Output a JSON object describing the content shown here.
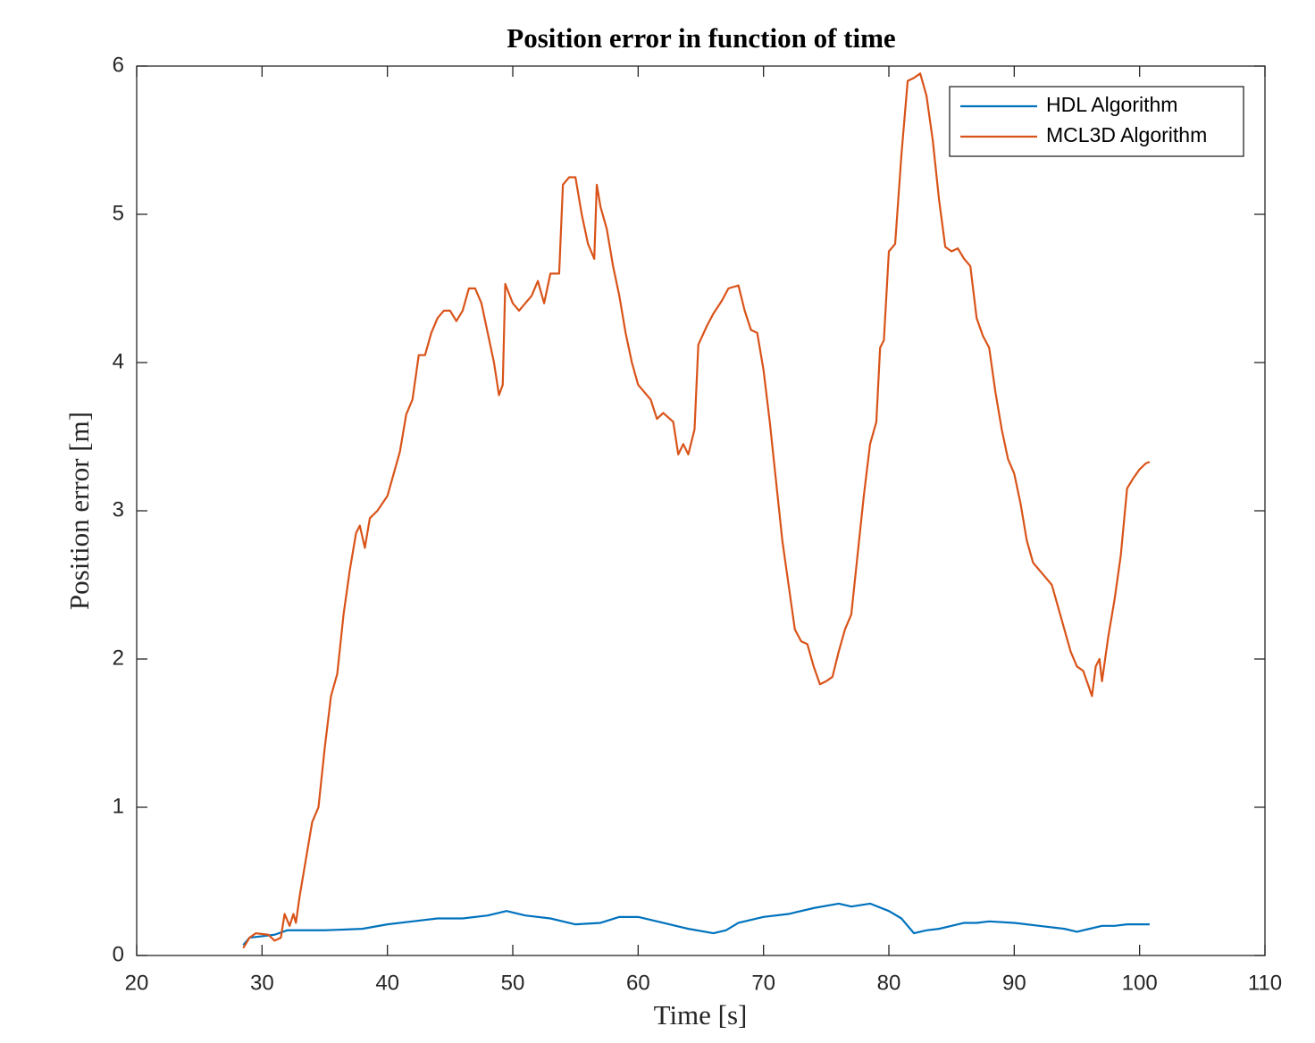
{
  "chart_data": {
    "type": "line",
    "title": "Position error in function of time",
    "xlabel": "Time [s]",
    "ylabel": "Position error [m]",
    "xlim": [
      20,
      110
    ],
    "xticks": [
      20,
      30,
      40,
      50,
      60,
      70,
      80,
      90,
      100,
      110
    ],
    "ylim": [
      0,
      6
    ],
    "yticks": [
      0,
      1,
      2,
      3,
      4,
      5,
      6
    ],
    "legend": "northeast",
    "grid": false,
    "series": [
      {
        "name": "HDL Algorithm",
        "color": "#0072bd",
        "x": [
          28.5,
          29,
          30,
          31,
          32,
          33,
          35,
          38,
          40,
          42,
          44,
          46,
          48,
          49.5,
          51,
          53,
          55,
          57,
          58.5,
          60,
          62,
          64,
          66,
          67,
          68,
          70,
          72,
          74,
          76,
          77,
          78.5,
          80,
          81,
          82,
          83,
          84,
          85,
          86,
          87,
          88,
          90,
          92,
          94,
          95,
          96,
          97,
          98,
          99,
          100,
          100.8
        ],
        "values": [
          0.07,
          0.12,
          0.13,
          0.14,
          0.17,
          0.17,
          0.17,
          0.18,
          0.21,
          0.23,
          0.25,
          0.25,
          0.27,
          0.3,
          0.27,
          0.25,
          0.21,
          0.22,
          0.26,
          0.26,
          0.22,
          0.18,
          0.15,
          0.17,
          0.22,
          0.26,
          0.28,
          0.32,
          0.35,
          0.33,
          0.35,
          0.3,
          0.25,
          0.15,
          0.17,
          0.18,
          0.2,
          0.22,
          0.22,
          0.23,
          0.22,
          0.2,
          0.18,
          0.16,
          0.18,
          0.2,
          0.2,
          0.21,
          0.21,
          0.21
        ]
      },
      {
        "name": "MCL3D Algorithm",
        "color": "#d95319",
        "x": [
          28.5,
          29,
          29.5,
          30.5,
          31,
          31.5,
          31.8,
          32.2,
          32.5,
          32.7,
          33,
          33.5,
          34,
          34.5,
          35,
          35.5,
          36,
          36.5,
          37,
          37.5,
          37.8,
          38.2,
          38.6,
          39.2,
          40,
          41,
          41.5,
          42,
          42.5,
          43,
          43.5,
          44,
          44.5,
          45,
          45.5,
          46,
          46.5,
          47,
          47.5,
          48,
          48.5,
          48.9,
          49.2,
          49.4,
          50,
          50.5,
          51.5,
          52,
          52.5,
          53,
          53.7,
          54,
          54.5,
          55,
          55.5,
          56,
          56.5,
          56.7,
          57,
          57.5,
          58,
          58.5,
          59,
          59.5,
          60,
          60.5,
          61,
          61.5,
          62,
          62.8,
          63.2,
          63.6,
          64,
          64.5,
          64.8,
          65.5,
          66,
          66.7,
          67.2,
          68,
          68.5,
          69,
          69.5,
          70,
          70.5,
          71,
          71.5,
          72,
          72.5,
          73,
          73.5,
          74,
          74.5,
          75,
          75.5,
          76,
          76.5,
          77,
          77.5,
          78,
          78.5,
          79,
          79.3,
          79.6,
          80,
          80.5,
          81,
          81.5,
          82,
          82.5,
          83,
          83.5,
          84,
          84.5,
          85,
          85.5,
          86,
          86.5,
          87,
          87.5,
          88,
          88.5,
          89,
          89.5,
          90,
          90.5,
          91,
          91.5,
          92,
          92.5,
          93,
          93.5,
          94,
          94.5,
          95,
          95.5,
          96,
          96.2,
          96.5,
          96.8,
          97,
          97.5,
          98,
          98.5,
          99,
          99.5,
          100,
          100.5,
          100.8
        ],
        "values": [
          0.05,
          0.12,
          0.15,
          0.14,
          0.1,
          0.12,
          0.28,
          0.2,
          0.28,
          0.22,
          0.4,
          0.65,
          0.9,
          1.0,
          1.4,
          1.75,
          1.9,
          2.3,
          2.6,
          2.85,
          2.9,
          2.75,
          2.95,
          3.0,
          3.1,
          3.4,
          3.65,
          3.75,
          4.05,
          4.05,
          4.2,
          4.3,
          4.35,
          4.35,
          4.28,
          4.35,
          4.5,
          4.5,
          4.4,
          4.2,
          4.0,
          3.78,
          3.85,
          4.53,
          4.4,
          4.35,
          4.45,
          4.55,
          4.4,
          4.6,
          4.6,
          5.2,
          5.25,
          5.25,
          5.0,
          4.8,
          4.7,
          5.2,
          5.05,
          4.9,
          4.65,
          4.45,
          4.2,
          4.0,
          3.85,
          3.8,
          3.75,
          3.62,
          3.66,
          3.6,
          3.38,
          3.45,
          3.38,
          3.55,
          4.12,
          4.25,
          4.33,
          4.42,
          4.5,
          4.52,
          4.35,
          4.22,
          4.2,
          3.95,
          3.6,
          3.2,
          2.8,
          2.5,
          2.2,
          2.12,
          2.1,
          1.95,
          1.83,
          1.85,
          1.88,
          2.05,
          2.2,
          2.3,
          2.7,
          3.1,
          3.45,
          3.6,
          4.1,
          4.15,
          4.75,
          4.8,
          5.4,
          5.9,
          5.92,
          5.95,
          5.8,
          5.5,
          5.1,
          4.78,
          4.75,
          4.77,
          4.7,
          4.65,
          4.3,
          4.18,
          4.1,
          3.8,
          3.55,
          3.35,
          3.25,
          3.05,
          2.8,
          2.65,
          2.6,
          2.55,
          2.5,
          2.35,
          2.2,
          2.05,
          1.95,
          1.92,
          1.8,
          1.75,
          1.95,
          2.0,
          1.85,
          2.15,
          2.4,
          2.7,
          3.15,
          3.22,
          3.28,
          3.32,
          3.33
        ]
      }
    ]
  }
}
